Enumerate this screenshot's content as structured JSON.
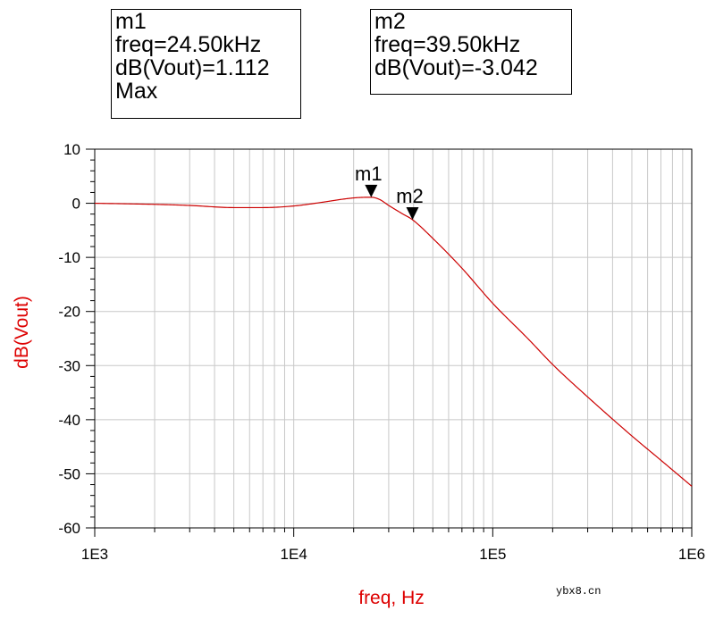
{
  "markers": [
    {
      "name": "m1",
      "lines": [
        "m1",
        "freq=24.50kHz",
        "dB(Vout)=1.112",
        "Max"
      ],
      "freq": 24500,
      "value": 1.112
    },
    {
      "name": "m2",
      "lines": [
        "m2",
        "freq=39.50kHz",
        "dB(Vout)=-3.042"
      ],
      "freq": 39500,
      "value": -3.042
    }
  ],
  "watermark": "ybx8.cn",
  "colors": {
    "trace": "#cc0000",
    "axis_label": "#dd0000",
    "grid": "#c8c8c8",
    "frame": "#000000"
  },
  "chart_data": {
    "type": "line",
    "xscale": "log",
    "xlim": [
      1000,
      1000000
    ],
    "ylim": [
      -60,
      10
    ],
    "xlabel": "freq, Hz",
    "ylabel": "dB(Vout)",
    "xticks": [
      1000,
      10000,
      100000,
      1000000
    ],
    "xtick_labels": [
      "1E3",
      "1E4",
      "1E5",
      "1E6"
    ],
    "yticks": [
      10,
      0,
      -10,
      -20,
      -30,
      -40,
      -50,
      -60
    ],
    "ytick_labels": [
      "10",
      "0",
      "-10",
      "-20",
      "-30",
      "-40",
      "-50",
      "-60"
    ],
    "grid": true,
    "series": [
      {
        "x": [
          1000,
          2000,
          3000,
          5000,
          7000,
          10000,
          14000,
          18000,
          21000,
          24500,
          27000,
          30000,
          35000,
          39500,
          50000,
          70000,
          100000,
          150000,
          200000,
          300000,
          500000,
          700000,
          1000000
        ],
        "y": [
          0,
          -0.2,
          -0.4,
          -0.8,
          -0.8,
          -0.5,
          0.2,
          0.8,
          1.05,
          1.112,
          0.7,
          -0.4,
          -1.9,
          -3.042,
          -6.5,
          -12.0,
          -18.5,
          -25.0,
          -29.8,
          -35.8,
          -43.0,
          -47.5,
          -52.3
        ]
      }
    ]
  }
}
